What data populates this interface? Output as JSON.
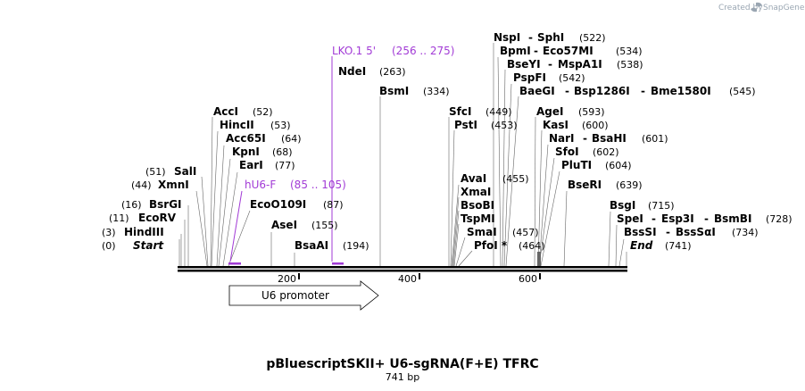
{
  "credit": {
    "prefix": "Created by",
    "brand": "SnapGene"
  },
  "map": {
    "title": "pBluescriptSKII+ U6-sgRNA(F+E) TFRC",
    "length_label": "741 bp",
    "total_bp": 741,
    "ticks": [
      "200",
      "400",
      "600"
    ],
    "feature_label": "U6 promoter",
    "primer_color": "#a23bd6"
  },
  "sites": {
    "start": {
      "name": "Start",
      "pos": "(0)"
    },
    "hind3": {
      "name": "HindIII",
      "pos": "(3)"
    },
    "ecorv": {
      "name": "EcoRV",
      "pos": "(11)"
    },
    "bsrgi": {
      "name": "BsrGI",
      "pos": "(16)"
    },
    "xmni": {
      "name": "XmnI",
      "pos": "(44)"
    },
    "sali": {
      "name": "SalI",
      "pos": "(51)"
    },
    "acci": {
      "name": "AccI",
      "pos": "(52)"
    },
    "hincii": {
      "name": "HincII",
      "pos": "(53)"
    },
    "acc65i": {
      "name": "Acc65I",
      "pos": "(64)"
    },
    "kpni": {
      "name": "KpnI",
      "pos": "(68)"
    },
    "eari": {
      "name": "EarI",
      "pos": "(77)"
    },
    "eco109": {
      "name": "EcoO109I",
      "pos": "(87)"
    },
    "asei": {
      "name": "AseI",
      "pos": "(155)"
    },
    "bsaai": {
      "name": "BsaAI",
      "pos": "(194)"
    },
    "ndei": {
      "name": "NdeI",
      "pos": "(263)"
    },
    "bsmi": {
      "name": "BsmI",
      "pos": "(334)"
    },
    "sfci": {
      "name": "SfcI",
      "pos": "(449)"
    },
    "psti": {
      "name": "PstI",
      "pos": "(453)"
    },
    "avai": {
      "name": "AvaI",
      "pos": "(455)"
    },
    "xmai": {
      "name": "XmaI"
    },
    "bsobi": {
      "name": "BsoBI"
    },
    "tspmi": {
      "name": "TspMI"
    },
    "smai": {
      "name": "SmaI",
      "pos": "(457)"
    },
    "pfoi": {
      "name": "PfoI *",
      "pos": "(464)"
    },
    "nspi": {
      "name": "NspI",
      "name2": "SphI",
      "pos": "(522)"
    },
    "bpmi": {
      "name": "BpmI",
      "name2": "Eco57MI",
      "pos": "(534)"
    },
    "bseyi": {
      "name": "BseYI",
      "name2": "MspA1I",
      "pos": "(538)"
    },
    "pspfi": {
      "name": "PspFI",
      "pos": "(542)"
    },
    "baegi": {
      "name": "BaeGI",
      "name2": "Bsp1286I",
      "name3": "Bme1580I",
      "pos": "(545)"
    },
    "agei": {
      "name": "AgeI",
      "pos": "(593)"
    },
    "kasi": {
      "name": "KasI",
      "pos": "(600)"
    },
    "nari": {
      "name": "NarI",
      "name2": "BsaHI",
      "pos": "(601)"
    },
    "sfoi": {
      "name": "SfoI",
      "pos": "(602)"
    },
    "pluti": {
      "name": "PluTI",
      "pos": "(604)"
    },
    "bseri": {
      "name": "BseRI",
      "pos": "(639)"
    },
    "bsgi": {
      "name": "BsgI",
      "pos": "(715)"
    },
    "spei": {
      "name": "SpeI",
      "name2": "Esp3I",
      "name3": "BsmBI",
      "pos": "(728)"
    },
    "bsssi": {
      "name": "BssSI",
      "name2": "BssSαI",
      "pos": "(734)"
    },
    "end": {
      "name": "End",
      "pos": "(741)"
    }
  },
  "primers": {
    "hu6f": {
      "name": "hU6-F",
      "range": "(85 .. 105)"
    },
    "lko1": {
      "name": "LKO.1 5'",
      "range": "(256 .. 275)"
    }
  }
}
